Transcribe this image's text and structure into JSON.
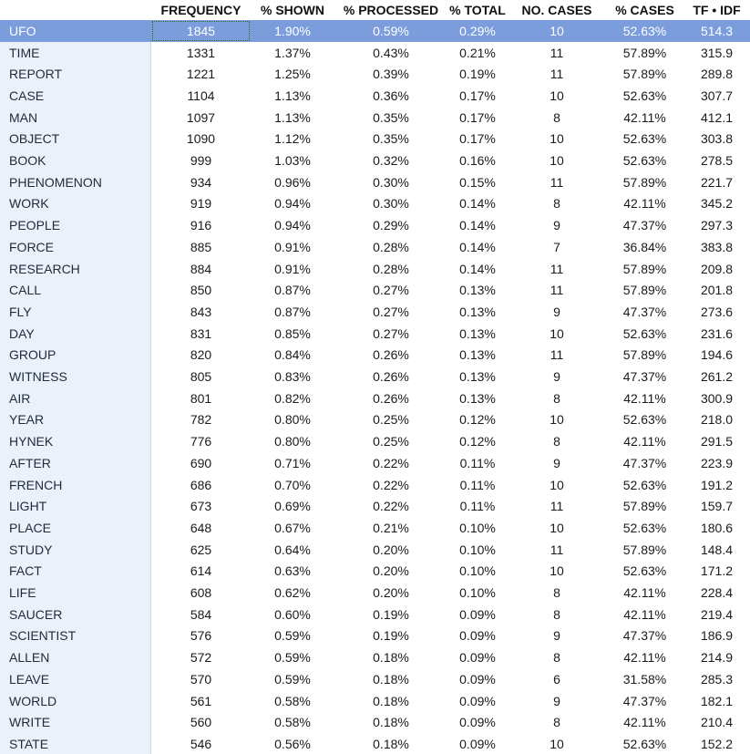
{
  "table": {
    "columns": [
      "FREQUENCY",
      "% SHOWN",
      "% PROCESSED",
      "% TOTAL",
      "NO. CASES",
      "% CASES",
      "TF • IDF"
    ],
    "rows": [
      [
        "UFO",
        "1845",
        "1.90%",
        "0.59%",
        "0.29%",
        "10",
        "52.63%",
        "514.3"
      ],
      [
        "TIME",
        "1331",
        "1.37%",
        "0.43%",
        "0.21%",
        "11",
        "57.89%",
        "315.9"
      ],
      [
        "REPORT",
        "1221",
        "1.25%",
        "0.39%",
        "0.19%",
        "11",
        "57.89%",
        "289.8"
      ],
      [
        "CASE",
        "1104",
        "1.13%",
        "0.36%",
        "0.17%",
        "10",
        "52.63%",
        "307.7"
      ],
      [
        "MAN",
        "1097",
        "1.13%",
        "0.35%",
        "0.17%",
        "8",
        "42.11%",
        "412.1"
      ],
      [
        "OBJECT",
        "1090",
        "1.12%",
        "0.35%",
        "0.17%",
        "10",
        "52.63%",
        "303.8"
      ],
      [
        "BOOK",
        "999",
        "1.03%",
        "0.32%",
        "0.16%",
        "10",
        "52.63%",
        "278.5"
      ],
      [
        "PHENOMENON",
        "934",
        "0.96%",
        "0.30%",
        "0.15%",
        "11",
        "57.89%",
        "221.7"
      ],
      [
        "WORK",
        "919",
        "0.94%",
        "0.30%",
        "0.14%",
        "8",
        "42.11%",
        "345.2"
      ],
      [
        "PEOPLE",
        "916",
        "0.94%",
        "0.29%",
        "0.14%",
        "9",
        "47.37%",
        "297.3"
      ],
      [
        "FORCE",
        "885",
        "0.91%",
        "0.28%",
        "0.14%",
        "7",
        "36.84%",
        "383.8"
      ],
      [
        "RESEARCH",
        "884",
        "0.91%",
        "0.28%",
        "0.14%",
        "11",
        "57.89%",
        "209.8"
      ],
      [
        "CALL",
        "850",
        "0.87%",
        "0.27%",
        "0.13%",
        "11",
        "57.89%",
        "201.8"
      ],
      [
        "FLY",
        "843",
        "0.87%",
        "0.27%",
        "0.13%",
        "9",
        "47.37%",
        "273.6"
      ],
      [
        "DAY",
        "831",
        "0.85%",
        "0.27%",
        "0.13%",
        "10",
        "52.63%",
        "231.6"
      ],
      [
        "GROUP",
        "820",
        "0.84%",
        "0.26%",
        "0.13%",
        "11",
        "57.89%",
        "194.6"
      ],
      [
        "WITNESS",
        "805",
        "0.83%",
        "0.26%",
        "0.13%",
        "9",
        "47.37%",
        "261.2"
      ],
      [
        "AIR",
        "801",
        "0.82%",
        "0.26%",
        "0.13%",
        "8",
        "42.11%",
        "300.9"
      ],
      [
        "YEAR",
        "782",
        "0.80%",
        "0.25%",
        "0.12%",
        "10",
        "52.63%",
        "218.0"
      ],
      [
        "HYNEK",
        "776",
        "0.80%",
        "0.25%",
        "0.12%",
        "8",
        "42.11%",
        "291.5"
      ],
      [
        "AFTER",
        "690",
        "0.71%",
        "0.22%",
        "0.11%",
        "9",
        "47.37%",
        "223.9"
      ],
      [
        "FRENCH",
        "686",
        "0.70%",
        "0.22%",
        "0.11%",
        "10",
        "52.63%",
        "191.2"
      ],
      [
        "LIGHT",
        "673",
        "0.69%",
        "0.22%",
        "0.11%",
        "11",
        "57.89%",
        "159.7"
      ],
      [
        "PLACE",
        "648",
        "0.67%",
        "0.21%",
        "0.10%",
        "10",
        "52.63%",
        "180.6"
      ],
      [
        "STUDY",
        "625",
        "0.64%",
        "0.20%",
        "0.10%",
        "11",
        "57.89%",
        "148.4"
      ],
      [
        "FACT",
        "614",
        "0.63%",
        "0.20%",
        "0.10%",
        "10",
        "52.63%",
        "171.2"
      ],
      [
        "LIFE",
        "608",
        "0.62%",
        "0.20%",
        "0.10%",
        "8",
        "42.11%",
        "228.4"
      ],
      [
        "SAUCER",
        "584",
        "0.60%",
        "0.19%",
        "0.09%",
        "8",
        "42.11%",
        "219.4"
      ],
      [
        "SCIENTIST",
        "576",
        "0.59%",
        "0.19%",
        "0.09%",
        "9",
        "47.37%",
        "186.9"
      ],
      [
        "ALLEN",
        "572",
        "0.59%",
        "0.18%",
        "0.09%",
        "8",
        "42.11%",
        "214.9"
      ],
      [
        "LEAVE",
        "570",
        "0.59%",
        "0.18%",
        "0.09%",
        "6",
        "31.58%",
        "285.3"
      ],
      [
        "WORLD",
        "561",
        "0.58%",
        "0.18%",
        "0.09%",
        "9",
        "47.37%",
        "182.1"
      ],
      [
        "WRITE",
        "560",
        "0.58%",
        "0.18%",
        "0.09%",
        "8",
        "42.11%",
        "210.4"
      ],
      [
        "STATE",
        "546",
        "0.56%",
        "0.18%",
        "0.09%",
        "10",
        "52.63%",
        "152.2"
      ]
    ]
  }
}
